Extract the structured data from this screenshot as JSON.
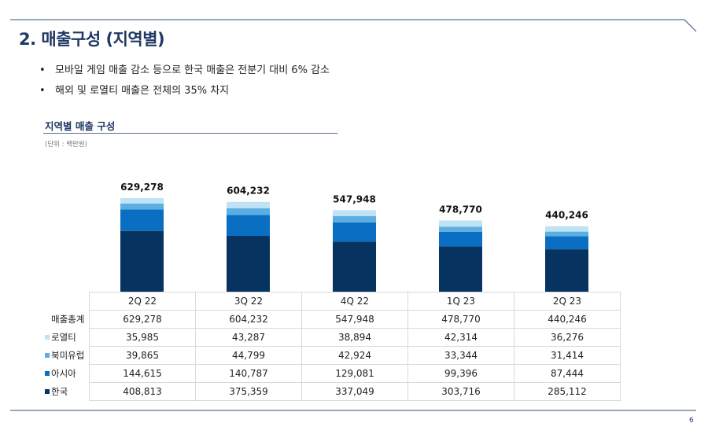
{
  "title": "2. 매출구성 (지역별)",
  "bullets": [
    "모바일 게임 매출 감소 등으로 한국 매출은 전분기 대비 6% 감소",
    "해외 및 로열티 매출은 전체의 35% 차지"
  ],
  "bullet_symbol": "•",
  "page_number": "6",
  "chart_data": {
    "type": "bar",
    "stacked": true,
    "title": "지역별 매출 구성",
    "unit": "(단위 : 백만원)",
    "categories": [
      "2Q 22",
      "3Q 22",
      "4Q 22",
      "1Q 23",
      "2Q 23"
    ],
    "total_label": "매출총계",
    "totals": [
      "629,278",
      "604,232",
      "547,948",
      "478,770",
      "440,246"
    ],
    "series": [
      {
        "name": "한국",
        "color": "#06335f",
        "values": [
          408813,
          375359,
          337049,
          303716,
          285112
        ],
        "labels": [
          "408,813",
          "375,359",
          "337,049",
          "303,716",
          "285,112"
        ]
      },
      {
        "name": "아시아",
        "color": "#0a6fc2",
        "values": [
          144615,
          140787,
          129081,
          99396,
          87444
        ],
        "labels": [
          "144,615",
          "140,787",
          "129,081",
          "99,396",
          "87,444"
        ]
      },
      {
        "name": "북미유럽",
        "color": "#5aaee0",
        "values": [
          39865,
          44799,
          42924,
          33344,
          31414
        ],
        "labels": [
          "39,865",
          "44,799",
          "42,924",
          "33,344",
          "31,414"
        ]
      },
      {
        "name": "로열티",
        "color": "#bfe2f5",
        "values": [
          35985,
          43287,
          38894,
          42314,
          36276
        ],
        "labels": [
          "35,985",
          "43,287",
          "38,894",
          "42,314",
          "36,276"
        ]
      }
    ]
  }
}
